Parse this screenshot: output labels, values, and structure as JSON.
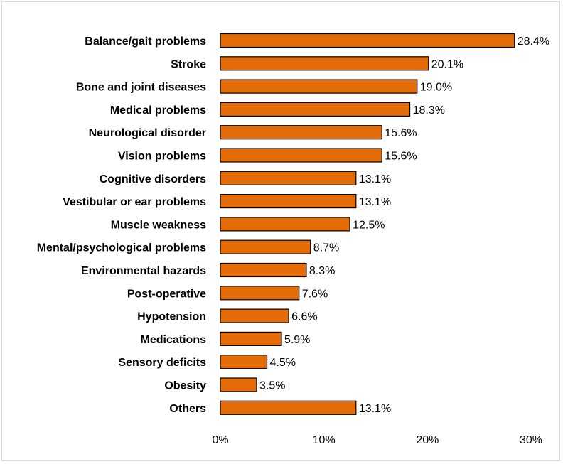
{
  "chart_data": {
    "type": "bar",
    "orientation": "horizontal",
    "title": "",
    "xlabel": "",
    "ylabel": "",
    "xlim": [
      0,
      30
    ],
    "x_ticks": [
      0,
      10,
      20,
      30
    ],
    "x_tick_labels": [
      "0%",
      "10%",
      "20%",
      "30%"
    ],
    "grid": false,
    "bar_color": "#e36c09",
    "bar_edge_color": "#000000",
    "categories": [
      "Balance/gait problems",
      "Stroke",
      "Bone and joint diseases",
      "Medical problems",
      "Neurological disorder",
      "Vision problems",
      "Cognitive disorders",
      "Vestibular or ear problems",
      "Muscle weakness",
      "Mental/psychological problems",
      "Environmental hazards",
      "Post-operative",
      "Hypotension",
      "Medications",
      "Sensory deficits",
      "Obesity",
      "Others"
    ],
    "values": [
      28.4,
      20.1,
      19.0,
      18.3,
      15.6,
      15.6,
      13.1,
      13.1,
      12.5,
      8.7,
      8.3,
      7.6,
      6.6,
      5.9,
      4.5,
      3.5,
      13.1
    ],
    "data_labels": [
      "28.4%",
      "20.1%",
      "19.0%",
      "18.3%",
      "15.6%",
      "15.6%",
      "13.1%",
      "13.1%",
      "12.5%",
      "8.7%",
      "8.3%",
      "7.6%",
      "6.6%",
      "5.9%",
      "4.5%",
      "3.5%",
      "13.1%"
    ]
  }
}
